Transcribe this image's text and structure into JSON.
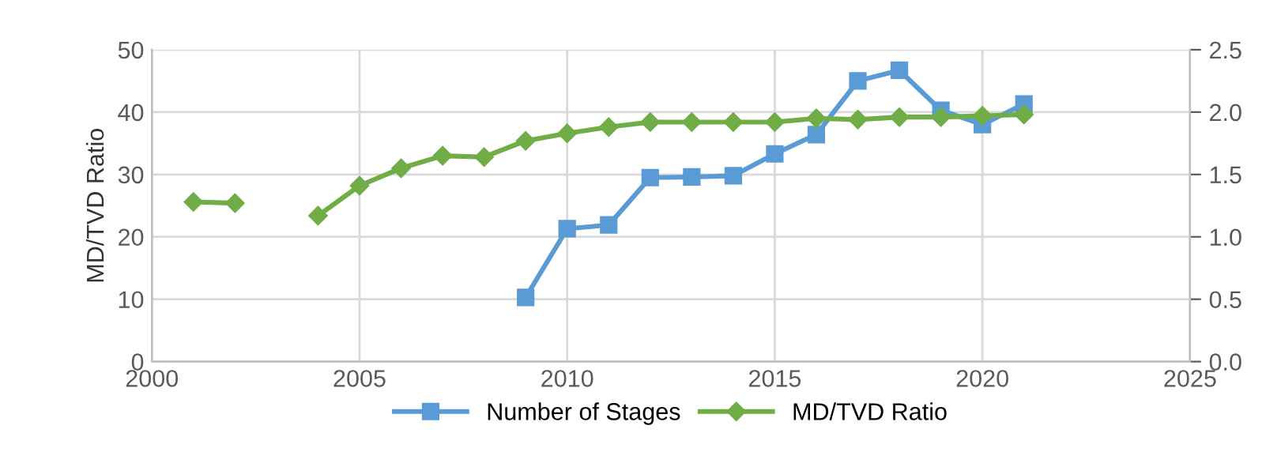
{
  "chart_data": {
    "type": "line",
    "ylabel": "MD/TVD Ratio",
    "xlim": [
      2000,
      2025
    ],
    "xticks": [
      2000,
      2005,
      2010,
      2015,
      2020,
      2025
    ],
    "ylim": [
      0,
      50
    ],
    "yticks": [
      0,
      10,
      20,
      30,
      40,
      50
    ],
    "y2lim": [
      0,
      2.5
    ],
    "y2ticks": [
      {
        "value": 0,
        "label": "0.0"
      },
      {
        "value": 0.5,
        "label": "0.5"
      },
      {
        "value": 1,
        "label": "1.0"
      },
      {
        "value": 1.5,
        "label": "1.5"
      },
      {
        "value": 2,
        "label": "2.0"
      },
      {
        "value": 2.5,
        "label": "2.5"
      }
    ],
    "grid": true,
    "legend": "bottom",
    "series": [
      {
        "name": "Number of Stages",
        "color": "#5b9bd5",
        "marker": "square",
        "x": [
          2009,
          2010,
          2011,
          2012,
          2013,
          2014,
          2015,
          2016,
          2017,
          2018,
          2019,
          2020,
          2021
        ],
        "values": [
          10.3,
          21.3,
          21.9,
          29.5,
          29.6,
          29.8,
          33.3,
          36.4,
          45,
          46.7,
          40.3,
          38,
          41.3
        ]
      },
      {
        "name": "MD/TVD Ratio",
        "color": "#70ad47",
        "marker": "diamond",
        "axis": "y2",
        "x": [
          2001,
          2002,
          2003,
          2004,
          2005,
          2006,
          2007,
          2008,
          2009,
          2010,
          2011,
          2012,
          2013,
          2014,
          2015,
          2016,
          2017,
          2018,
          2019,
          2020,
          2021
        ],
        "values": [
          1.28,
          1.27,
          null,
          1.17,
          1.41,
          1.55,
          1.65,
          1.64,
          1.77,
          1.83,
          1.88,
          1.92,
          1.92,
          1.92,
          1.92,
          1.95,
          1.94,
          1.96,
          1.96,
          1.97,
          1.98
        ]
      }
    ]
  }
}
